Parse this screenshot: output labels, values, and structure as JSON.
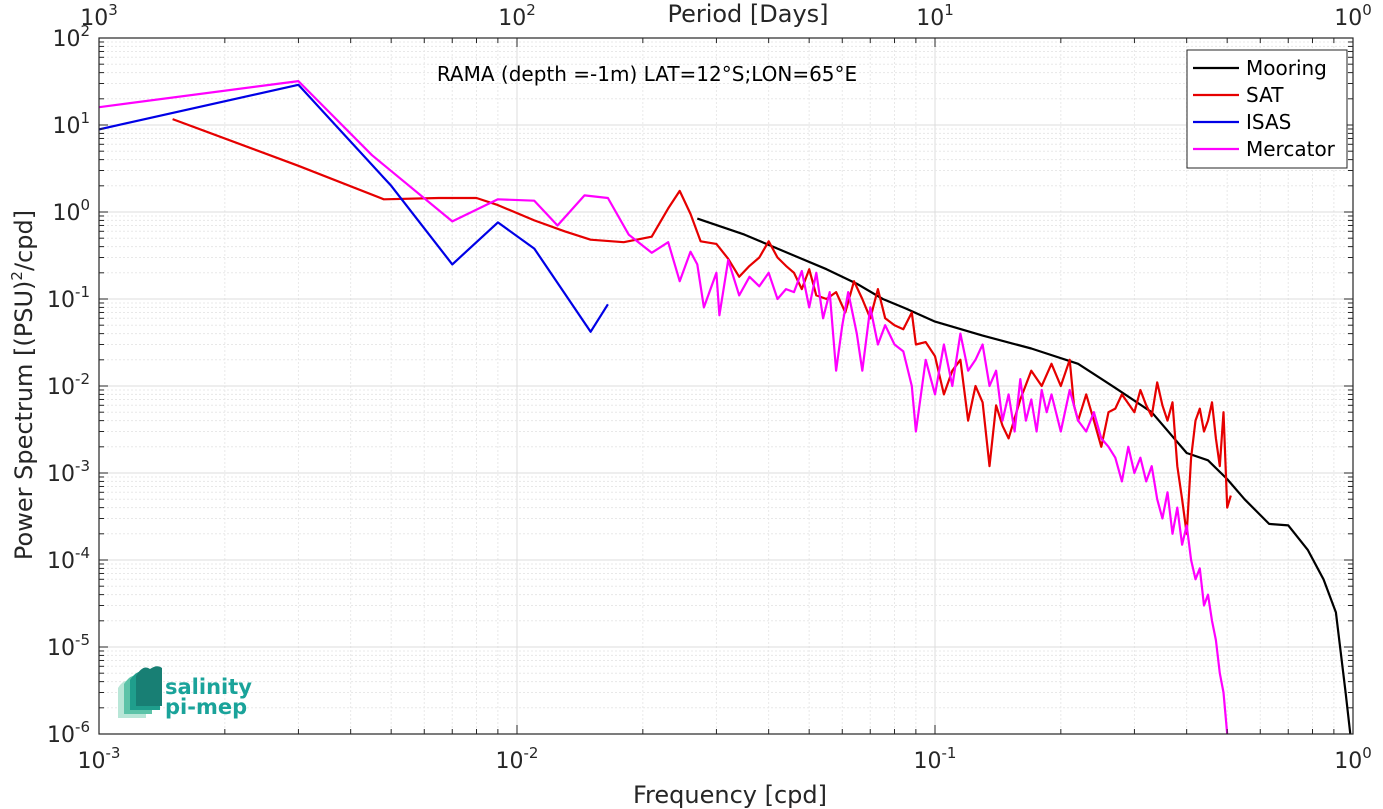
{
  "chart_data": {
    "type": "line",
    "title": "RAMA (depth =-1m) LAT=12°S;LON=65°E",
    "xlabel": "Frequency [cpd]",
    "ylabel": "Power Spectrum [(PSU)",
    "ylabel_sup": "2",
    "ylabel_suffix": "/cpd]",
    "top_xlabel": "Period [Days]",
    "xscale": "log",
    "yscale": "log",
    "xlim": [
      0.001,
      1
    ],
    "ylim": [
      1e-06,
      100
    ],
    "grid": true,
    "legend_position": "top-right",
    "x_ticks": [
      {
        "base": "10",
        "exp": "-3",
        "value": 0.001
      },
      {
        "base": "10",
        "exp": "-2",
        "value": 0.01
      },
      {
        "base": "10",
        "exp": "-1",
        "value": 0.1
      },
      {
        "base": "10",
        "exp": "0",
        "value": 1
      }
    ],
    "top_ticks": [
      {
        "base": "10",
        "exp": "3",
        "freq": 0.001
      },
      {
        "base": "10",
        "exp": "2",
        "freq": 0.01
      },
      {
        "base": "10",
        "exp": "1",
        "freq": 0.1
      },
      {
        "base": "10",
        "exp": "0",
        "freq": 1
      }
    ],
    "y_ticks": [
      {
        "base": "10",
        "exp": "2",
        "value": 100
      },
      {
        "base": "10",
        "exp": "1",
        "value": 10
      },
      {
        "base": "10",
        "exp": "0",
        "value": 1
      },
      {
        "base": "10",
        "exp": "-1",
        "value": 0.1
      },
      {
        "base": "10",
        "exp": "-2",
        "value": 0.01
      },
      {
        "base": "10",
        "exp": "-3",
        "value": 0.001
      },
      {
        "base": "10",
        "exp": "-4",
        "value": 0.0001
      },
      {
        "base": "10",
        "exp": "-5",
        "value": 1e-05
      },
      {
        "base": "10",
        "exp": "-6",
        "value": 1e-06
      }
    ],
    "series": [
      {
        "name": "Mooring",
        "color": "#000000",
        "points": [
          [
            0.027,
            0.84
          ],
          [
            0.035,
            0.55
          ],
          [
            0.045,
            0.33
          ],
          [
            0.055,
            0.22
          ],
          [
            0.065,
            0.15
          ],
          [
            0.075,
            0.1
          ],
          [
            0.085,
            0.078
          ],
          [
            0.1,
            0.055
          ],
          [
            0.13,
            0.038
          ],
          [
            0.17,
            0.027
          ],
          [
            0.22,
            0.018
          ],
          [
            0.27,
            0.0095
          ],
          [
            0.33,
            0.005
          ],
          [
            0.4,
            0.0017
          ],
          [
            0.45,
            0.0014
          ],
          [
            0.5,
            0.00085
          ],
          [
            0.55,
            0.0005
          ],
          [
            0.63,
            0.00026
          ],
          [
            0.7,
            0.00025
          ],
          [
            0.78,
            0.00013
          ],
          [
            0.85,
            6e-05
          ],
          [
            0.91,
            2.5e-05
          ],
          [
            0.96,
            3e-06
          ],
          [
            0.985,
            1e-06
          ]
        ]
      },
      {
        "name": "SAT",
        "color": "#e60000",
        "points": [
          [
            0.0015,
            11.7
          ],
          [
            0.003,
            3.4
          ],
          [
            0.0048,
            1.4
          ],
          [
            0.0065,
            1.45
          ],
          [
            0.008,
            1.45
          ],
          [
            0.009,
            1.2
          ],
          [
            0.011,
            0.8
          ],
          [
            0.013,
            0.6
          ],
          [
            0.015,
            0.48
          ],
          [
            0.018,
            0.45
          ],
          [
            0.021,
            0.52
          ],
          [
            0.023,
            1.1
          ],
          [
            0.0245,
            1.75
          ],
          [
            0.026,
            0.95
          ],
          [
            0.0275,
            0.46
          ],
          [
            0.03,
            0.43
          ],
          [
            0.032,
            0.29
          ],
          [
            0.034,
            0.18
          ],
          [
            0.036,
            0.24
          ],
          [
            0.038,
            0.3
          ],
          [
            0.04,
            0.46
          ],
          [
            0.042,
            0.3
          ],
          [
            0.044,
            0.24
          ],
          [
            0.046,
            0.2
          ],
          [
            0.048,
            0.13
          ],
          [
            0.05,
            0.22
          ],
          [
            0.052,
            0.11
          ],
          [
            0.055,
            0.1
          ],
          [
            0.058,
            0.12
          ],
          [
            0.061,
            0.07
          ],
          [
            0.064,
            0.16
          ],
          [
            0.067,
            0.1
          ],
          [
            0.07,
            0.06
          ],
          [
            0.073,
            0.13
          ],
          [
            0.076,
            0.06
          ],
          [
            0.08,
            0.05
          ],
          [
            0.084,
            0.045
          ],
          [
            0.088,
            0.07
          ],
          [
            0.09,
            0.03
          ],
          [
            0.095,
            0.032
          ],
          [
            0.1,
            0.022
          ],
          [
            0.105,
            0.008
          ],
          [
            0.11,
            0.015
          ],
          [
            0.115,
            0.02
          ],
          [
            0.12,
            0.004
          ],
          [
            0.125,
            0.01
          ],
          [
            0.13,
            0.0065
          ],
          [
            0.135,
            0.0012
          ],
          [
            0.14,
            0.006
          ],
          [
            0.145,
            0.0035
          ],
          [
            0.15,
            0.0025
          ],
          [
            0.16,
            0.007
          ],
          [
            0.17,
            0.015
          ],
          [
            0.18,
            0.01
          ],
          [
            0.19,
            0.018
          ],
          [
            0.2,
            0.01
          ],
          [
            0.21,
            0.02
          ],
          [
            0.215,
            0.006
          ],
          [
            0.22,
            0.004
          ],
          [
            0.23,
            0.008
          ],
          [
            0.24,
            0.004
          ],
          [
            0.25,
            0.002
          ],
          [
            0.26,
            0.005
          ],
          [
            0.27,
            0.0055
          ],
          [
            0.28,
            0.008
          ],
          [
            0.3,
            0.005
          ],
          [
            0.31,
            0.009
          ],
          [
            0.32,
            0.006
          ],
          [
            0.33,
            0.0045
          ],
          [
            0.34,
            0.011
          ],
          [
            0.35,
            0.006
          ],
          [
            0.36,
            0.004
          ],
          [
            0.37,
            0.0065
          ],
          [
            0.38,
            0.0012
          ],
          [
            0.39,
            0.0005
          ],
          [
            0.4,
            0.0002
          ],
          [
            0.41,
            0.0015
          ],
          [
            0.42,
            0.004
          ],
          [
            0.43,
            0.0055
          ],
          [
            0.44,
            0.003
          ],
          [
            0.45,
            0.004
          ],
          [
            0.46,
            0.0065
          ],
          [
            0.47,
            0.0025
          ],
          [
            0.48,
            0.0012
          ],
          [
            0.49,
            0.005
          ],
          [
            0.5,
            0.0004
          ],
          [
            0.51,
            0.00055
          ]
        ]
      },
      {
        "name": "ISAS",
        "color": "#0000e6",
        "points": [
          [
            0.001,
            8.9
          ],
          [
            0.003,
            29
          ],
          [
            0.005,
            2.0
          ],
          [
            0.007,
            0.25
          ],
          [
            0.009,
            0.76
          ],
          [
            0.011,
            0.38
          ],
          [
            0.015,
            0.042
          ],
          [
            0.0165,
            0.087
          ]
        ]
      },
      {
        "name": "Mercator",
        "color": "#ff00ff",
        "points": [
          [
            0.001,
            16
          ],
          [
            0.003,
            32
          ],
          [
            0.0045,
            4.5
          ],
          [
            0.007,
            0.78
          ],
          [
            0.009,
            1.4
          ],
          [
            0.011,
            1.35
          ],
          [
            0.0125,
            0.7
          ],
          [
            0.0145,
            1.55
          ],
          [
            0.0165,
            1.45
          ],
          [
            0.0185,
            0.55
          ],
          [
            0.021,
            0.34
          ],
          [
            0.023,
            0.45
          ],
          [
            0.0245,
            0.16
          ],
          [
            0.026,
            0.35
          ],
          [
            0.027,
            0.25
          ],
          [
            0.028,
            0.08
          ],
          [
            0.03,
            0.2
          ],
          [
            0.0305,
            0.065
          ],
          [
            0.032,
            0.28
          ],
          [
            0.034,
            0.11
          ],
          [
            0.036,
            0.18
          ],
          [
            0.038,
            0.14
          ],
          [
            0.04,
            0.2
          ],
          [
            0.042,
            0.1
          ],
          [
            0.044,
            0.13
          ],
          [
            0.046,
            0.12
          ],
          [
            0.048,
            0.21
          ],
          [
            0.05,
            0.08
          ],
          [
            0.052,
            0.2
          ],
          [
            0.054,
            0.06
          ],
          [
            0.056,
            0.12
          ],
          [
            0.058,
            0.015
          ],
          [
            0.06,
            0.05
          ],
          [
            0.062,
            0.12
          ],
          [
            0.065,
            0.04
          ],
          [
            0.067,
            0.015
          ],
          [
            0.07,
            0.08
          ],
          [
            0.073,
            0.03
          ],
          [
            0.076,
            0.05
          ],
          [
            0.08,
            0.03
          ],
          [
            0.084,
            0.025
          ],
          [
            0.088,
            0.01
          ],
          [
            0.09,
            0.003
          ],
          [
            0.095,
            0.02
          ],
          [
            0.1,
            0.008
          ],
          [
            0.105,
            0.03
          ],
          [
            0.11,
            0.01
          ],
          [
            0.115,
            0.04
          ],
          [
            0.12,
            0.015
          ],
          [
            0.125,
            0.02
          ],
          [
            0.13,
            0.03
          ],
          [
            0.135,
            0.01
          ],
          [
            0.14,
            0.015
          ],
          [
            0.145,
            0.004
          ],
          [
            0.15,
            0.008
          ],
          [
            0.155,
            0.003
          ],
          [
            0.16,
            0.012
          ],
          [
            0.165,
            0.004
          ],
          [
            0.17,
            0.007
          ],
          [
            0.175,
            0.003
          ],
          [
            0.18,
            0.009
          ],
          [
            0.185,
            0.005
          ],
          [
            0.19,
            0.008
          ],
          [
            0.2,
            0.003
          ],
          [
            0.21,
            0.009
          ],
          [
            0.22,
            0.004
          ],
          [
            0.23,
            0.003
          ],
          [
            0.24,
            0.005
          ],
          [
            0.25,
            0.0025
          ],
          [
            0.26,
            0.002
          ],
          [
            0.27,
            0.0015
          ],
          [
            0.28,
            0.0008
          ],
          [
            0.29,
            0.002
          ],
          [
            0.3,
            0.001
          ],
          [
            0.31,
            0.0015
          ],
          [
            0.32,
            0.0008
          ],
          [
            0.33,
            0.0012
          ],
          [
            0.34,
            0.0005
          ],
          [
            0.35,
            0.0003
          ],
          [
            0.36,
            0.0006
          ],
          [
            0.37,
            0.0002
          ],
          [
            0.38,
            0.0004
          ],
          [
            0.39,
            0.00015
          ],
          [
            0.4,
            0.00025
          ],
          [
            0.41,
            0.0001
          ],
          [
            0.42,
            6e-05
          ],
          [
            0.43,
            8e-05
          ],
          [
            0.44,
            3e-05
          ],
          [
            0.45,
            4e-05
          ],
          [
            0.46,
            2e-05
          ],
          [
            0.47,
            1.2e-05
          ],
          [
            0.48,
            5e-06
          ],
          [
            0.49,
            3e-06
          ],
          [
            0.5,
            1e-06
          ]
        ]
      }
    ]
  },
  "logo": {
    "line1": "salinity",
    "line2": "pi-mep",
    "color": "#1aa39a"
  }
}
